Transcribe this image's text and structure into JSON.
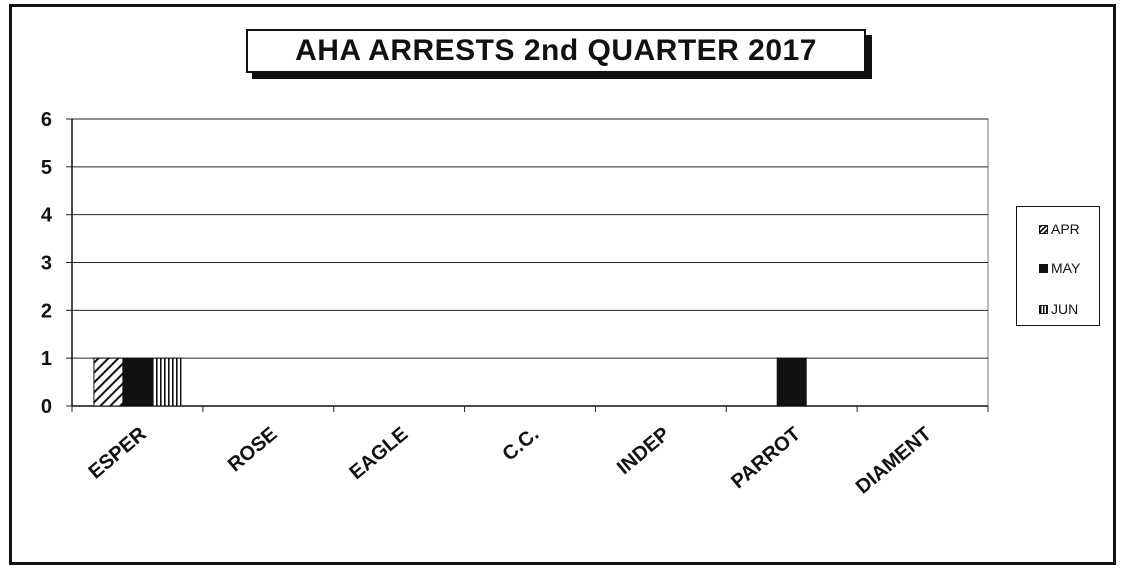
{
  "chart_data": {
    "type": "bar",
    "title": "AHA ARRESTS 2nd QUARTER 2017",
    "categories": [
      "ESPER",
      "ROSE",
      "EAGLE",
      "C.C.",
      "INDEP",
      "PARROT",
      "DIAMENT"
    ],
    "series": [
      {
        "name": "APR",
        "values": [
          1,
          0,
          0,
          0,
          0,
          0,
          0
        ],
        "pattern": "diagonal-hatch"
      },
      {
        "name": "MAY",
        "values": [
          1,
          0,
          0,
          0,
          0,
          1,
          0
        ],
        "pattern": "solid-black"
      },
      {
        "name": "JUN",
        "values": [
          1,
          0,
          0,
          0,
          0,
          0,
          0
        ],
        "pattern": "vertical-lines"
      }
    ],
    "ylim": [
      0,
      6
    ],
    "yticks": [
      "0",
      "1",
      "2",
      "3",
      "4",
      "5",
      "6"
    ],
    "xlabel": "",
    "ylabel": "",
    "grid": true,
    "legend": "right"
  },
  "colors": {
    "ink": "#111111",
    "background": "#ffffff",
    "plot_background": "#ffffff"
  }
}
